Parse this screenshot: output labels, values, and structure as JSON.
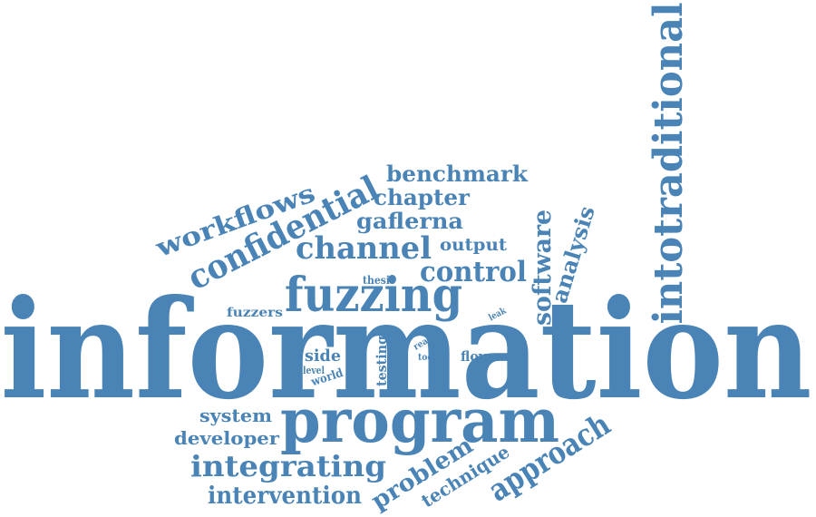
{
  "color": "#4a84b6",
  "words": {
    "information": "information",
    "program": "program",
    "fuzzing": "fuzzing",
    "intotraditional": "intotraditional",
    "confidential": "confidential",
    "channel": "channel",
    "control": "control",
    "approach": "approach",
    "integrating": "integrating",
    "intervention": "intervention",
    "workflows": "workflows",
    "benchmark": "benchmark",
    "chapter": "chapter",
    "gaflerna": "gaflerna",
    "output": "output",
    "software": "software",
    "analysis": "analysis",
    "problem": "problem",
    "technique": "technique",
    "developer": "developer",
    "system": "system",
    "fuzzers": "fuzzers",
    "thesis": "thesis",
    "side": "side",
    "level": "level",
    "world": "world",
    "testing": "testing",
    "real": "real",
    "tool": "tool",
    "flow": "flow",
    "leak": "leak"
  }
}
